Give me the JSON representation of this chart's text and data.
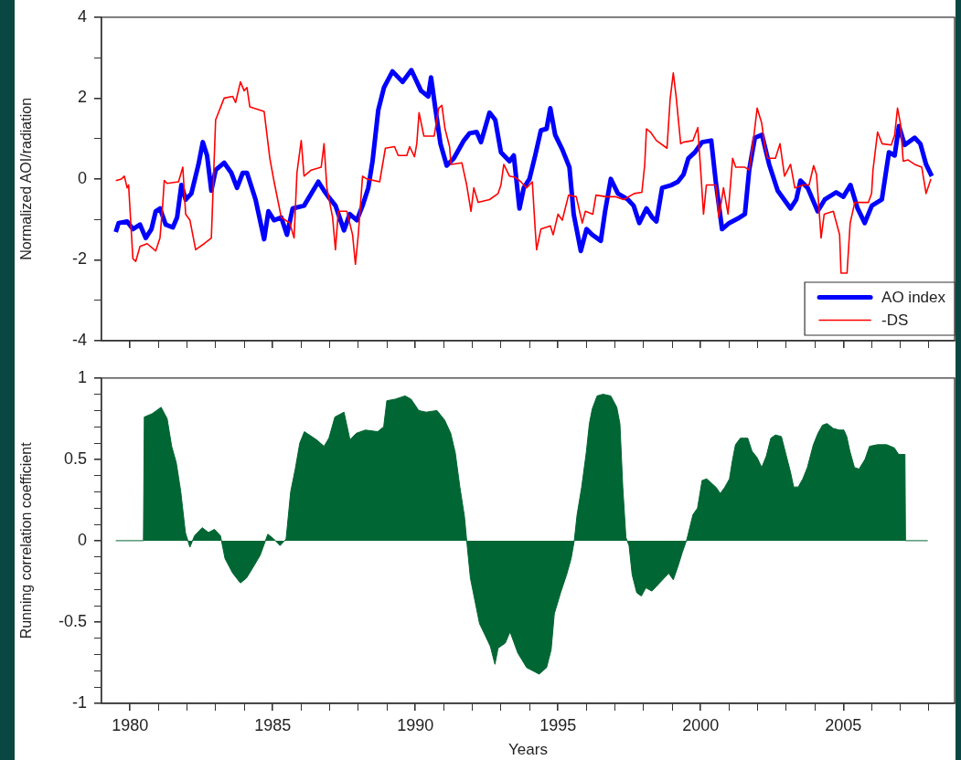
{
  "chart_data": [
    {
      "type": "line",
      "ylabel": "Normalized AOI/radiation",
      "xlim": [
        1979,
        2008.9
      ],
      "xticks": [
        1980,
        {
          "value": 1981,
          "label": null
        },
        {
          "value": 1982,
          "label": null
        },
        {
          "value": 1983,
          "label": null
        },
        {
          "value": 1984,
          "label": null
        },
        1985,
        {
          "value": 1986,
          "label": null
        },
        {
          "value": 1987,
          "label": null
        },
        {
          "value": 1988,
          "label": null
        },
        {
          "value": 1989,
          "label": null
        },
        1990,
        {
          "value": 1991,
          "label": null
        },
        {
          "value": 1992,
          "label": null
        },
        {
          "value": 1993,
          "label": null
        },
        {
          "value": 1994,
          "label": null
        },
        1995,
        {
          "value": 1996,
          "label": null
        },
        {
          "value": 1997,
          "label": null
        },
        {
          "value": 1998,
          "label": null
        },
        {
          "value": 1999,
          "label": null
        },
        2000,
        {
          "value": 2001,
          "label": null
        },
        {
          "value": 2002,
          "label": null
        },
        {
          "value": 2003,
          "label": null
        },
        {
          "value": 2004,
          "label": null
        },
        2005,
        {
          "value": 2006,
          "label": null
        },
        {
          "value": 2007,
          "label": null
        },
        {
          "value": 2008,
          "label": null
        }
      ],
      "ylim": [
        -4,
        4
      ],
      "yticks": [
        -4,
        {
          "value": -3,
          "label": null
        },
        -2,
        {
          "value": -1,
          "label": null
        },
        0,
        {
          "value": 1,
          "label": null
        },
        2,
        {
          "value": 3,
          "label": null
        },
        4
      ],
      "tick_labels": "y",
      "legend": "bottom right",
      "series": [
        {
          "name": "AO index",
          "color": "#0000ff",
          "x": [
            1979.5,
            1979.6,
            1979.9,
            1980.1,
            1980.35,
            1980.55,
            1980.75,
            1980.9,
            1981.05,
            1981.25,
            1981.5,
            1981.65,
            1981.8,
            1981.95,
            1982.15,
            1982.4,
            1982.55,
            1982.7,
            1982.85,
            1983.0,
            1983.3,
            1983.55,
            1983.75,
            1983.95,
            1984.1,
            1984.4,
            1984.7,
            1984.85,
            1985.05,
            1985.3,
            1985.5,
            1985.7,
            1986.1,
            1986.6,
            1986.8,
            1986.95,
            1987.2,
            1987.5,
            1987.7,
            1987.95,
            1988.15,
            1988.35,
            1988.5,
            1988.7,
            1988.9,
            1989.2,
            1989.55,
            1989.86,
            1990.2,
            1990.45,
            1990.55,
            1990.7,
            1990.88,
            1991.1,
            1991.35,
            1991.7,
            1991.9,
            1992.15,
            1992.3,
            1992.6,
            1992.8,
            1993.0,
            1993.3,
            1993.45,
            1993.65,
            1993.8,
            1994.0,
            1994.2,
            1994.4,
            1994.6,
            1994.73,
            1994.9,
            1995.15,
            1995.4,
            1995.55,
            1995.8,
            1996.0,
            1996.2,
            1996.5,
            1996.65,
            1996.85,
            1997.1,
            1997.45,
            1997.65,
            1997.85,
            1998.1,
            1998.3,
            1998.45,
            1998.65,
            1998.98,
            1999.2,
            1999.4,
            1999.57,
            1999.8,
            2000.05,
            2000.37,
            2000.53,
            2000.75,
            2001.0,
            2001.3,
            2001.55,
            2001.7,
            2001.9,
            2002.15,
            2002.4,
            2002.7,
            2003.15,
            2003.35,
            2003.5,
            2003.75,
            2004.1,
            2004.35,
            2004.75,
            2005.0,
            2005.25,
            2005.5,
            2005.75,
            2006.0,
            2006.35,
            2006.6,
            2006.8,
            2006.95,
            2007.15,
            2007.5,
            2007.7,
            2007.9,
            2008.1
          ],
          "values": [
            -1.31,
            -1.09,
            -1.05,
            -1.24,
            -1.13,
            -1.46,
            -1.24,
            -0.8,
            -0.73,
            -1.13,
            -1.2,
            -0.95,
            -0.15,
            -0.51,
            -0.36,
            0.36,
            0.91,
            0.58,
            -0.29,
            0.22,
            0.4,
            0.15,
            -0.22,
            0.15,
            0.15,
            -0.51,
            -1.49,
            -0.8,
            -1.02,
            -0.95,
            -1.38,
            -0.73,
            -0.66,
            -0.07,
            -0.29,
            -0.44,
            -0.66,
            -1.27,
            -0.87,
            -1.02,
            -0.66,
            -0.22,
            0.44,
            1.7,
            2.26,
            2.66,
            2.4,
            2.69,
            2.18,
            2.04,
            2.51,
            1.75,
            0.87,
            0.33,
            0.51,
            0.95,
            1.13,
            1.16,
            0.91,
            1.64,
            1.46,
            0.66,
            0.44,
            0.58,
            -0.73,
            -0.22,
            0,
            0.58,
            1.2,
            1.24,
            1.75,
            1.09,
            0.73,
            0.29,
            -0.87,
            -1.78,
            -1.24,
            -1.38,
            -1.53,
            -0.8,
            0,
            -0.36,
            -0.51,
            -0.66,
            -1.09,
            -0.73,
            -0.95,
            -1.05,
            -0.22,
            -0.15,
            -0.07,
            0.11,
            0.51,
            0.66,
            0.91,
            0.95,
            -0.07,
            -1.24,
            -1.09,
            -0.98,
            -0.87,
            0.22,
            1.02,
            1.09,
            0.36,
            -0.29,
            -0.73,
            -0.51,
            -0.04,
            -0.22,
            -0.8,
            -0.51,
            -0.33,
            -0.44,
            -0.15,
            -0.73,
            -1.09,
            -0.66,
            -0.51,
            0.66,
            0.58,
            1.31,
            0.84,
            1.02,
            0.87,
            0.36,
            0.07
          ]
        },
        {
          "name": "-DS",
          "color": "#ff0000",
          "x": [
            1979.5,
            1979.7,
            1979.8,
            1979.9,
            1979.95,
            1980.1,
            1980.2,
            1980.35,
            1980.6,
            1980.9,
            1981.05,
            1981.15,
            1981.2,
            1981.3,
            1981.7,
            1981.85,
            1981.95,
            1982.1,
            1982.3,
            1982.6,
            1982.85,
            1983.0,
            1983.3,
            1983.6,
            1983.7,
            1983.87,
            1984.0,
            1984.1,
            1984.2,
            1984.7,
            1984.9,
            1985.05,
            1985.3,
            1985.6,
            1985.75,
            1985.85,
            1986.0,
            1986.1,
            1986.35,
            1986.7,
            1986.8,
            1986.9,
            1987.1,
            1987.2,
            1987.3,
            1987.6,
            1987.8,
            1987.9,
            1988.0,
            1988.15,
            1988.3,
            1988.75,
            1988.95,
            1989.27,
            1989.4,
            1989.7,
            1989.8,
            1989.97,
            1990.05,
            1990.13,
            1990.3,
            1990.66,
            1990.82,
            1990.93,
            1991.04,
            1991.2,
            1991.25,
            1991.63,
            1991.8,
            1991.95,
            1992.05,
            1992.2,
            1992.6,
            1992.9,
            1993.0,
            1993.1,
            1993.3,
            1993.5,
            1993.7,
            1993.9,
            1994.1,
            1994.2,
            1994.25,
            1994.4,
            1994.73,
            1994.83,
            1995.0,
            1995.15,
            1995.37,
            1995.64,
            1995.85,
            1995.96,
            1996.22,
            1996.33,
            1996.7,
            1997.03,
            1997.3,
            1997.67,
            1997.94,
            1998.04,
            1998.1,
            1998.24,
            1998.45,
            1998.82,
            1998.93,
            1999.04,
            1999.14,
            1999.3,
            1999.4,
            1999.73,
            1999.9,
            2000.0,
            2000.1,
            2000.2,
            2000.53,
            2000.64,
            2000.8,
            2000.96,
            2001.12,
            2001.23,
            2001.55,
            2001.7,
            2001.87,
            2001.98,
            2002.14,
            2002.25,
            2002.35,
            2002.62,
            2002.78,
            2002.94,
            2003.15,
            2003.3,
            2003.6,
            2003.8,
            2003.96,
            2004.06,
            2004.17,
            2004.22,
            2004.33,
            2004.65,
            2004.87,
            2004.92,
            2005.13,
            2005.24,
            2005.4,
            2005.88,
            2005.99,
            2006.04,
            2006.2,
            2006.36,
            2006.68,
            2006.8,
            2006.9,
            2007.0,
            2007.1,
            2007.27,
            2007.5,
            2007.75,
            2007.9,
            2008.07
          ],
          "values": [
            -0.04,
            0,
            0.07,
            -0.22,
            -0.15,
            -1.97,
            -2.04,
            -1.67,
            -1.6,
            -1.78,
            -1.46,
            -0.58,
            -0.04,
            -0.11,
            -0.07,
            0.29,
            -0.87,
            -1.02,
            -1.75,
            -1.6,
            -1.46,
            1.46,
            2.0,
            2.04,
            1.89,
            2.4,
            2.18,
            2.26,
            1.78,
            1.67,
            0.51,
            -0.07,
            -0.95,
            -1.09,
            -1.46,
            0.15,
            0.95,
            0.07,
            0.22,
            0.29,
            0.87,
            -0.22,
            -0.95,
            -1.75,
            -0.8,
            -0.8,
            -1.38,
            -2.11,
            -1.38,
            0.07,
            0,
            -0.07,
            0.76,
            0.8,
            0.58,
            0.58,
            0.8,
            0.55,
            0.87,
            1.64,
            1.06,
            1.06,
            1.75,
            1.82,
            1.24,
            0.8,
            0.36,
            0.4,
            -0.15,
            -0.8,
            -0.22,
            -0.58,
            -0.51,
            -0.36,
            -0.15,
            0.36,
            0.07,
            0.04,
            -0.07,
            -0.22,
            -0.07,
            -1.24,
            -1.75,
            -1.24,
            -1.16,
            -1.38,
            -0.87,
            -1.02,
            -0.4,
            -0.44,
            -1.09,
            -0.8,
            -0.87,
            -0.4,
            -0.44,
            -0.44,
            -0.51,
            -0.36,
            -0.33,
            0.36,
            1.24,
            1.16,
            0.95,
            0.76,
            1.97,
            2.62,
            2.04,
            0.87,
            0.91,
            0.95,
            1.27,
            0.22,
            -0.87,
            -0.15,
            -0.15,
            -0.95,
            -0.22,
            -0.87,
            0.51,
            0.29,
            0.29,
            0.22,
            1.09,
            1.75,
            1.38,
            0.8,
            0.51,
            0.51,
            0.87,
            0.07,
            0.36,
            -0.22,
            -0.15,
            -0.15,
            0.33,
            0.11,
            -0.95,
            -1.46,
            -0.87,
            -0.8,
            -1.38,
            -2.33,
            -2.33,
            -1.09,
            -0.58,
            -0.58,
            -0.36,
            0.22,
            1.16,
            0.87,
            0.84,
            1.09,
            1.75,
            1.38,
            0.44,
            0.47,
            0.36,
            0.29,
            -0.36,
            0
          ]
        }
      ]
    },
    {
      "type": "area",
      "xlabel": "Years",
      "ylabel": "Running correlation coefficient",
      "xlim": [
        1979,
        2008.9
      ],
      "xticks": [
        1980,
        {
          "value": 1981,
          "label": null
        },
        {
          "value": 1982,
          "label": null
        },
        {
          "value": 1983,
          "label": null
        },
        {
          "value": 1984,
          "label": null
        },
        1985,
        {
          "value": 1986,
          "label": null
        },
        {
          "value": 1987,
          "label": null
        },
        {
          "value": 1988,
          "label": null
        },
        {
          "value": 1989,
          "label": null
        },
        1990,
        {
          "value": 1991,
          "label": null
        },
        {
          "value": 1992,
          "label": null
        },
        {
          "value": 1993,
          "label": null
        },
        {
          "value": 1994,
          "label": null
        },
        1995,
        {
          "value": 1996,
          "label": null
        },
        {
          "value": 1997,
          "label": null
        },
        {
          "value": 1998,
          "label": null
        },
        {
          "value": 1999,
          "label": null
        },
        2000,
        {
          "value": 2001,
          "label": null
        },
        {
          "value": 2002,
          "label": null
        },
        {
          "value": 2003,
          "label": null
        },
        {
          "value": 2004,
          "label": null
        },
        2005,
        {
          "value": 2006,
          "label": null
        },
        {
          "value": 2007,
          "label": null
        },
        {
          "value": 2008,
          "label": null
        }
      ],
      "ylim": [
        -1,
        1
      ],
      "yticks": [
        -1,
        {
          "value": -0.9,
          "label": null
        },
        {
          "value": -0.8,
          "label": null
        },
        {
          "value": -0.7,
          "label": null
        },
        {
          "value": -0.6,
          "label": null
        },
        -0.5,
        {
          "value": -0.4,
          "label": null
        },
        {
          "value": -0.3,
          "label": null
        },
        {
          "value": -0.2,
          "label": null
        },
        {
          "value": -0.1,
          "label": null
        },
        0,
        {
          "value": 0.1,
          "label": null
        },
        {
          "value": 0.2,
          "label": null
        },
        {
          "value": 0.3,
          "label": null
        },
        {
          "value": 0.4,
          "label": null
        },
        0.5,
        {
          "value": 0.6,
          "label": null
        },
        {
          "value": 0.7,
          "label": null
        },
        {
          "value": 0.8,
          "label": null
        },
        {
          "value": 0.9,
          "label": null
        },
        1
      ],
      "series": [
        {
          "color": "#006633",
          "x": [
            1979.5,
            1980.47,
            1980.5,
            1980.77,
            1980.93,
            1981.09,
            1981.3,
            1981.46,
            1981.62,
            1981.78,
            1981.94,
            1982.1,
            1982.26,
            1982.53,
            1982.75,
            1982.96,
            1983.17,
            1983.33,
            1983.6,
            1983.87,
            1984.08,
            1984.29,
            1984.56,
            1984.83,
            1985.04,
            1985.26,
            1985.47,
            1985.63,
            1985.79,
            1985.95,
            1986.11,
            1986.54,
            1986.8,
            1986.97,
            1987.18,
            1987.5,
            1987.71,
            1987.93,
            1988.25,
            1988.68,
            1988.89,
            1989.0,
            1989.3,
            1989.64,
            1989.85,
            1990.12,
            1990.38,
            1990.76,
            1991.03,
            1991.24,
            1991.4,
            1991.56,
            1991.72,
            1991.8,
            1991.93,
            1992.09,
            1992.25,
            1992.47,
            1992.63,
            1992.79,
            1992.9,
            1993.15,
            1993.32,
            1993.59,
            1993.9,
            1994.34,
            1994.6,
            1994.76,
            1994.87,
            1995.09,
            1995.3,
            1995.46,
            1995.57,
            1995.67,
            1995.83,
            1995.99,
            1996.1,
            1996.2,
            1996.37,
            1996.58,
            1996.85,
            1997.06,
            1997.17,
            1997.27,
            1997.38,
            1997.49,
            1997.6,
            1997.76,
            1997.92,
            1998.08,
            1998.29,
            1998.56,
            1998.88,
            1999.04,
            1999.2,
            1999.36,
            1999.52,
            1999.73,
            1999.89,
            2000.05,
            2000.21,
            2000.53,
            2000.69,
            2000.85,
            2001.01,
            2001.11,
            2001.22,
            2001.39,
            2001.65,
            2001.8,
            2001.98,
            2002.14,
            2002.3,
            2002.46,
            2002.62,
            2002.83,
            2002.99,
            2003.15,
            2003.26,
            2003.42,
            2003.58,
            2003.74,
            2003.95,
            2004.11,
            2004.27,
            2004.43,
            2004.65,
            2004.86,
            2005.02,
            2005.12,
            2005.23,
            2005.39,
            2005.55,
            2005.76,
            2005.92,
            2006.2,
            2006.52,
            2006.79,
            2006.94,
            2007.16,
            2007.18,
            2007.96
          ],
          "values": [
            0,
            0,
            0.76,
            0.78,
            0.8,
            0.82,
            0.75,
            0.58,
            0.48,
            0.3,
            0.05,
            -0.04,
            0.03,
            0.08,
            0.05,
            0.07,
            0.03,
            -0.11,
            -0.2,
            -0.26,
            -0.23,
            -0.17,
            -0.09,
            0.04,
            0.01,
            -0.03,
            0.01,
            0.3,
            0.44,
            0.6,
            0.67,
            0.62,
            0.58,
            0.63,
            0.76,
            0.79,
            0.62,
            0.66,
            0.68,
            0.67,
            0.7,
            0.86,
            0.87,
            0.89,
            0.87,
            0.8,
            0.79,
            0.8,
            0.74,
            0.66,
            0.54,
            0.33,
            0.15,
            0,
            -0.23,
            -0.37,
            -0.51,
            -0.59,
            -0.65,
            -0.76,
            -0.66,
            -0.63,
            -0.56,
            -0.69,
            -0.78,
            -0.82,
            -0.78,
            -0.67,
            -0.45,
            -0.32,
            -0.21,
            -0.11,
            0,
            0.16,
            0.33,
            0.54,
            0.72,
            0.81,
            0.89,
            0.9,
            0.89,
            0.82,
            0.72,
            0.33,
            0.02,
            -0.03,
            -0.21,
            -0.32,
            -0.34,
            -0.29,
            -0.31,
            -0.26,
            -0.2,
            -0.24,
            -0.16,
            -0.07,
            0.01,
            0.16,
            0.2,
            0.37,
            0.38,
            0.33,
            0.29,
            0.33,
            0.38,
            0.49,
            0.59,
            0.63,
            0.63,
            0.55,
            0.51,
            0.45,
            0.52,
            0.63,
            0.65,
            0.64,
            0.53,
            0.42,
            0.33,
            0.33,
            0.38,
            0.45,
            0.59,
            0.66,
            0.71,
            0.72,
            0.69,
            0.68,
            0.68,
            0.64,
            0.55,
            0.45,
            0.44,
            0.5,
            0.58,
            0.59,
            0.59,
            0.57,
            0.53,
            0.53,
            0,
            0
          ]
        }
      ]
    }
  ]
}
